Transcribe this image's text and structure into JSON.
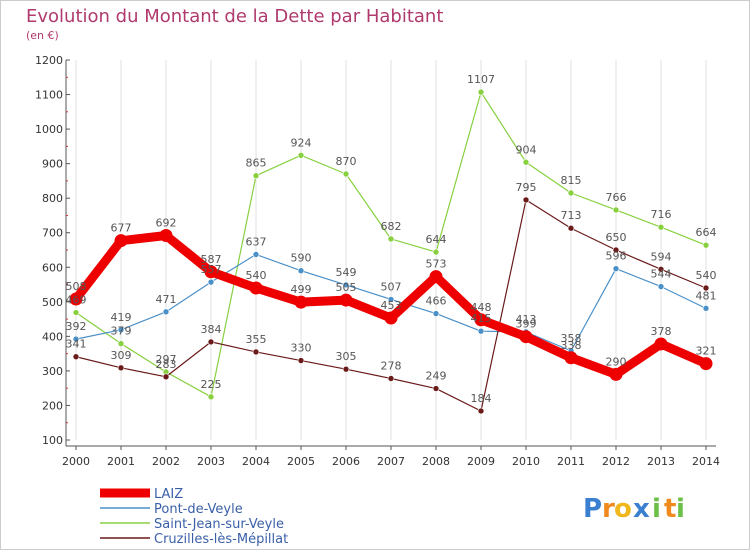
{
  "chart_data": {
    "type": "line",
    "title": "Evolution du Montant de la Dette par Habitant",
    "subtitle": "(en €)",
    "xlabel": "",
    "ylabel": "",
    "ylim": [
      100,
      1200
    ],
    "yticks": [
      100,
      200,
      300,
      400,
      500,
      600,
      700,
      800,
      900,
      1000,
      1100,
      1200
    ],
    "categories": [
      "2000",
      "2001",
      "2002",
      "2003",
      "2004",
      "2005",
      "2006",
      "2007",
      "2008",
      "2009",
      "2010",
      "2011",
      "2012",
      "2013",
      "2014"
    ],
    "grid": "vertical",
    "legend_position": "bottom-left",
    "series": [
      {
        "name": "LAIZ",
        "color": "#ee0000",
        "values": [
          508,
          677,
          692,
          587,
          540,
          499,
          505,
          453,
          573,
          448,
          399,
          338,
          290,
          378,
          321
        ]
      },
      {
        "name": "Pont-de-Veyle",
        "color": "#4a90c8",
        "values": [
          392,
          419,
          471,
          557,
          637,
          590,
          549,
          507,
          466,
          415,
          413,
          358,
          596,
          544,
          481
        ]
      },
      {
        "name": "Saint-Jean-sur-Veyle",
        "color": "#88d040",
        "values": [
          469,
          379,
          297,
          225,
          865,
          924,
          870,
          682,
          644,
          1107,
          904,
          815,
          766,
          716,
          664
        ]
      },
      {
        "name": "Cruzilles-lès-Mépillat",
        "color": "#6b1a1a",
        "values": [
          341,
          309,
          283,
          384,
          355,
          330,
          305,
          278,
          249,
          184,
          795,
          713,
          650,
          594,
          540
        ]
      }
    ]
  },
  "logo": {
    "letters": [
      "P",
      "r",
      "o",
      "x",
      "i",
      "t",
      "i"
    ]
  }
}
